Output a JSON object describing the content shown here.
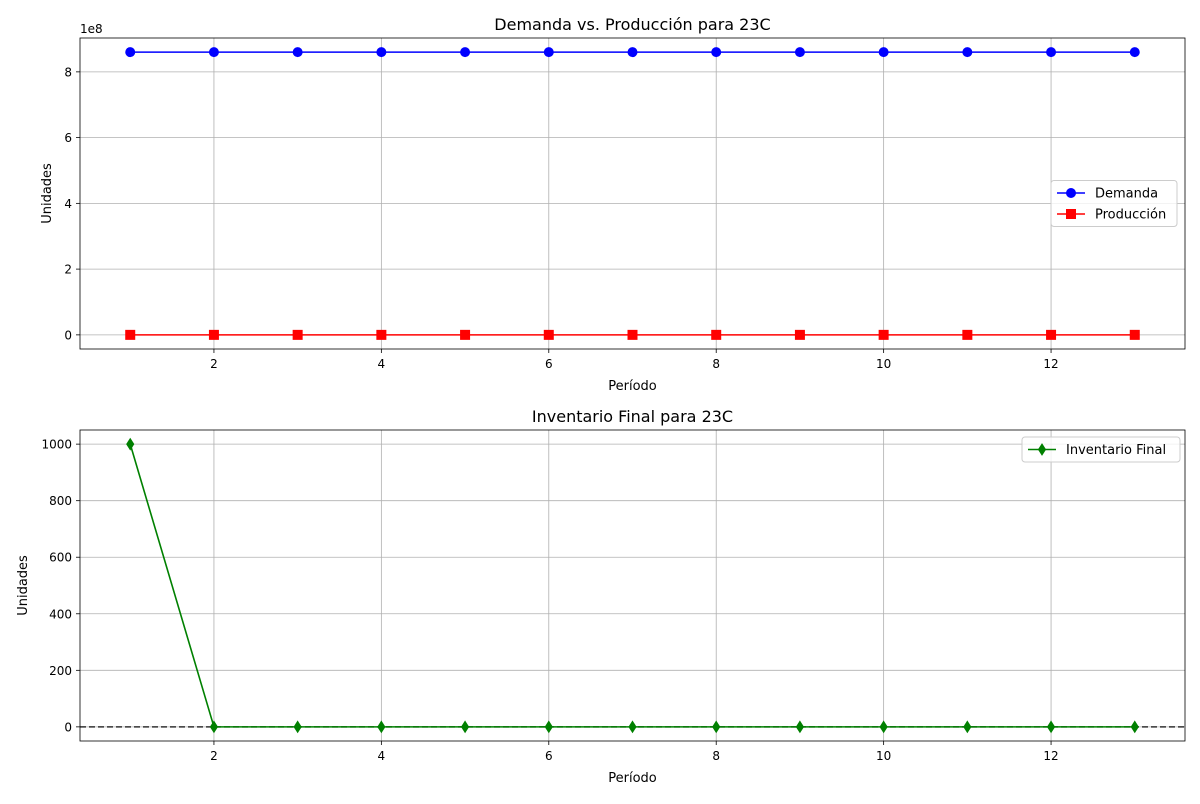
{
  "chart_data": [
    {
      "type": "line",
      "title": "Demanda vs. Producción para 23C",
      "xlabel": "Período",
      "ylabel": "Unidades",
      "offset_text": "1e8",
      "x": [
        1,
        2,
        3,
        4,
        5,
        6,
        7,
        8,
        9,
        10,
        11,
        12,
        13
      ],
      "xlim": [
        0.4,
        13.6
      ],
      "ylim": [
        -0.43,
        9.03
      ],
      "y_scale_factor": 100000000,
      "xticks": [
        2,
        4,
        6,
        8,
        10,
        12
      ],
      "yticks": [
        0,
        2,
        4,
        6,
        8
      ],
      "grid": true,
      "legend_position": "center-right",
      "series": [
        {
          "name": "Demanda",
          "color": "#0000ff",
          "marker": "circle",
          "values": [
            860000000,
            860000000,
            860000000,
            860000000,
            860000000,
            860000000,
            860000000,
            860000000,
            860000000,
            860000000,
            860000000,
            860000000,
            860000000
          ]
        },
        {
          "name": "Producción",
          "color": "#ff0000",
          "marker": "square",
          "values": [
            0,
            0,
            0,
            0,
            0,
            0,
            0,
            0,
            0,
            0,
            0,
            0,
            0
          ]
        }
      ]
    },
    {
      "type": "line",
      "title": "Inventario Final para 23C",
      "xlabel": "Período",
      "ylabel": "Unidades",
      "x": [
        1,
        2,
        3,
        4,
        5,
        6,
        7,
        8,
        9,
        10,
        11,
        12,
        13
      ],
      "xlim": [
        0.4,
        13.6
      ],
      "ylim": [
        -50,
        1050
      ],
      "xticks": [
        2,
        4,
        6,
        8,
        10,
        12
      ],
      "yticks": [
        0,
        200,
        400,
        600,
        800,
        1000
      ],
      "grid": true,
      "legend_position": "top-right",
      "reference_line": {
        "y": 0,
        "color": "#333333",
        "style": "dashed"
      },
      "series": [
        {
          "name": "Inventario Final",
          "color": "#008000",
          "marker": "thin-diamond",
          "values": [
            1000,
            0,
            0,
            0,
            0,
            0,
            0,
            0,
            0,
            0,
            0,
            0,
            0
          ]
        }
      ]
    }
  ]
}
